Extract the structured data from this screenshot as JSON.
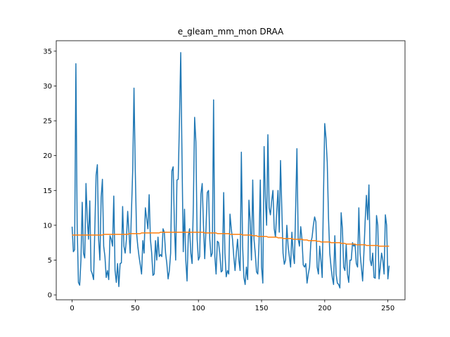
{
  "chart_data": {
    "type": "line",
    "title": "e_gleam_mm_mon DRAA",
    "x": [
      0,
      1,
      2,
      3,
      4,
      5,
      6,
      7,
      8,
      9,
      10,
      11,
      12,
      13,
      14,
      15,
      16,
      17,
      18,
      19,
      20,
      21,
      22,
      23,
      24,
      25,
      26,
      27,
      28,
      29,
      30,
      31,
      32,
      33,
      34,
      35,
      36,
      37,
      38,
      39,
      40,
      41,
      42,
      43,
      44,
      45,
      46,
      47,
      48,
      49,
      50,
      51,
      52,
      53,
      54,
      55,
      56,
      57,
      58,
      59,
      60,
      61,
      62,
      63,
      64,
      65,
      66,
      67,
      68,
      69,
      70,
      71,
      72,
      73,
      74,
      75,
      76,
      77,
      78,
      79,
      80,
      81,
      82,
      83,
      84,
      85,
      86,
      87,
      88,
      89,
      90,
      91,
      92,
      93,
      94,
      95,
      96,
      97,
      98,
      99,
      100,
      101,
      102,
      103,
      104,
      105,
      106,
      107,
      108,
      109,
      110,
      111,
      112,
      113,
      114,
      115,
      116,
      117,
      118,
      119,
      120,
      121,
      122,
      123,
      124,
      125,
      126,
      127,
      128,
      129,
      130,
      131,
      132,
      133,
      134,
      135,
      136,
      137,
      138,
      139,
      140,
      141,
      142,
      143,
      144,
      145,
      146,
      147,
      148,
      149,
      150,
      151,
      152,
      153,
      154,
      155,
      156,
      157,
      158,
      159,
      160,
      161,
      162,
      163,
      164,
      165,
      166,
      167,
      168,
      169,
      170,
      171,
      172,
      173,
      174,
      175,
      176,
      177,
      178,
      179,
      180,
      181,
      182,
      183,
      184,
      185,
      186,
      187,
      188,
      189,
      190,
      191,
      192,
      193,
      194,
      195,
      196,
      197,
      198,
      199,
      200,
      201,
      202,
      203,
      204,
      205,
      206,
      207,
      208,
      209,
      210,
      211,
      212,
      213,
      214,
      215,
      216,
      217,
      218,
      219,
      220,
      221,
      222,
      223,
      224,
      225,
      226,
      227,
      228,
      229,
      230,
      231,
      232,
      233,
      234,
      235,
      236,
      237,
      238,
      239,
      240,
      241,
      242,
      243,
      244,
      245,
      246,
      247,
      248,
      249,
      250,
      251
    ],
    "series": [
      {
        "color": "#1f77b4",
        "values": [
          9.8,
          6.2,
          6.5,
          33.2,
          10,
          1.8,
          1.4,
          5,
          13.3,
          6,
          5.3,
          16,
          11,
          8,
          13.5,
          3.5,
          3,
          2.2,
          9.5,
          17.2,
          18.7,
          8,
          5,
          14,
          16.6,
          7,
          5.5,
          2.5,
          3.5,
          2.2,
          8.5,
          8,
          7,
          14.2,
          3.5,
          1.8,
          4.5,
          1.2,
          4.5,
          4.6,
          12.7,
          7,
          6,
          8,
          12,
          9,
          6,
          12,
          18,
          29.7,
          18,
          9,
          7,
          5.5,
          4.3,
          3,
          7.8,
          6,
          12.5,
          11,
          9.5,
          14.4,
          8,
          6,
          2.8,
          3,
          7.8,
          5,
          8.3,
          5.5,
          5.8,
          5.5,
          9.5,
          9,
          6,
          4.5,
          2.3,
          3.5,
          6,
          17.8,
          18.4,
          10,
          5,
          16.5,
          16.6,
          25,
          34.8,
          20,
          6.2,
          12.3,
          5,
          2,
          8.5,
          9.5,
          6,
          4.5,
          13,
          25.5,
          22,
          8,
          5,
          5.5,
          14.5,
          16,
          10,
          5.2,
          9.5,
          14.7,
          15,
          8,
          5.5,
          6,
          28,
          5.5,
          3,
          7.7,
          7.5,
          5.8,
          3.3,
          3.5,
          14.7,
          6,
          2.6,
          3.5,
          3,
          11.6,
          9.5,
          8,
          5.5,
          3.5,
          6,
          8,
          5,
          3.5,
          20.5,
          7,
          2.5,
          1.5,
          4,
          2.2,
          13.6,
          10.5,
          5,
          16.5,
          8,
          6,
          3.3,
          3,
          7.5,
          16.5,
          4,
          1.7,
          21.3,
          14,
          10,
          23,
          12.5,
          11.5,
          13.5,
          15,
          9.5,
          8.3,
          12,
          15,
          9,
          19.3,
          12.5,
          6,
          4.4,
          5,
          10,
          7,
          5.5,
          4,
          9,
          6,
          4.5,
          12.6,
          21,
          8,
          7,
          9.8,
          8,
          4.3,
          4,
          4.5,
          1.7,
          3,
          4,
          7.5,
          8.3,
          10,
          11.2,
          10.5,
          4,
          3,
          7,
          5,
          2.5,
          14,
          24.6,
          22.5,
          19,
          11,
          6,
          4,
          2.5,
          1.5,
          8.5,
          3,
          1.7,
          1.5,
          1,
          11.8,
          9.5,
          4,
          3.5,
          7.3,
          3,
          1.8,
          5,
          5,
          7.5,
          7,
          7.3,
          4.5,
          4,
          12.5,
          6,
          4,
          2,
          6,
          10.6,
          14.3,
          10.8,
          15.8,
          5,
          4.2,
          6,
          2.5,
          2.4,
          11.4,
          10,
          2.3,
          4,
          6,
          5,
          3,
          11.5,
          10,
          2.3,
          4.2
        ]
      },
      {
        "color": "#ff7f0e",
        "values": [
          8.6,
          8.6,
          8.6,
          8.6,
          8.6,
          8.6,
          8.6,
          8.6,
          8.6,
          8.6,
          8.6,
          8.6,
          8.6,
          8.6,
          8.6,
          8.6,
          8.6,
          8.6,
          8.6,
          8.6,
          8.6,
          8.6,
          8.6,
          8.6,
          8.6,
          8.7,
          8.7,
          8.7,
          8.7,
          8.7,
          8.7,
          8.7,
          8.7,
          8.7,
          8.7,
          8.7,
          8.7,
          8.7,
          8.7,
          8.7,
          8.7,
          8.7,
          8.7,
          8.7,
          8.7,
          8.8,
          8.8,
          8.8,
          8.8,
          8.8,
          8.8,
          8.8,
          8.8,
          8.8,
          8.8,
          8.9,
          8.9,
          8.9,
          8.9,
          8.9,
          8.9,
          8.9,
          8.9,
          8.9,
          8.9,
          8.9,
          8.9,
          8.9,
          8.9,
          8.9,
          9.0,
          9.0,
          9.0,
          9.0,
          9.0,
          9.0,
          9.0,
          9.0,
          9.0,
          9.0,
          9.0,
          9.0,
          9.0,
          9.0,
          9.0,
          9.0,
          9.0,
          9.0,
          9.0,
          9.0,
          9.0,
          9.0,
          9.0,
          9.0,
          9.0,
          9.0,
          9.0,
          9.0,
          9.0,
          9.0,
          9.0,
          9.0,
          9.0,
          9.0,
          9.0,
          8.9,
          8.9,
          8.9,
          8.9,
          8.9,
          8.9,
          8.9,
          8.9,
          8.9,
          8.9,
          8.8,
          8.8,
          8.8,
          8.8,
          8.8,
          8.8,
          8.8,
          8.8,
          8.8,
          8.8,
          8.7,
          8.7,
          8.7,
          8.7,
          8.7,
          8.7,
          8.7,
          8.7,
          8.7,
          8.7,
          8.6,
          8.6,
          8.6,
          8.6,
          8.6,
          8.6,
          8.6,
          8.6,
          8.5,
          8.5,
          8.5,
          8.5,
          8.4,
          8.4,
          8.4,
          8.4,
          8.4,
          8.4,
          8.4,
          8.4,
          8.3,
          8.3,
          8.3,
          8.3,
          8.3,
          8.3,
          8.3,
          8.3,
          8.2,
          8.2,
          8.2,
          8.2,
          8.1,
          8.1,
          8.1,
          8.1,
          8.1,
          8.1,
          8.1,
          8.1,
          8.0,
          8.0,
          8.0,
          8.0,
          8.0,
          8.0,
          8.0,
          8.0,
          7.9,
          7.9,
          7.9,
          7.9,
          7.8,
          7.8,
          7.8,
          7.8,
          7.8,
          7.8,
          7.8,
          7.7,
          7.7,
          7.7,
          7.6,
          7.6,
          7.6,
          7.6,
          7.6,
          7.6,
          7.6,
          7.6,
          7.5,
          7.5,
          7.5,
          7.5,
          7.5,
          7.5,
          7.5,
          7.5,
          7.4,
          7.4,
          7.4,
          7.4,
          7.3,
          7.3,
          7.3,
          7.3,
          7.3,
          7.3,
          7.3,
          7.3,
          7.2,
          7.2,
          7.2,
          7.2,
          7.2,
          7.2,
          7.2,
          7.2,
          7.1,
          7.1,
          7.1,
          7.1,
          7.1,
          7.1,
          7.1,
          7.1,
          7.1,
          7.1,
          7.0,
          7.0,
          7.0,
          7.0,
          7.0,
          7.0,
          7.0,
          7.0,
          7.0
        ]
      }
    ],
    "xlim": [
      -12.55,
      263.55
    ],
    "xticks": [
      0,
      50,
      100,
      150,
      200,
      250
    ],
    "ylim": [
      -0.7,
      36.5
    ],
    "yticks": [
      0,
      5,
      10,
      15,
      20,
      25,
      30,
      35
    ]
  }
}
